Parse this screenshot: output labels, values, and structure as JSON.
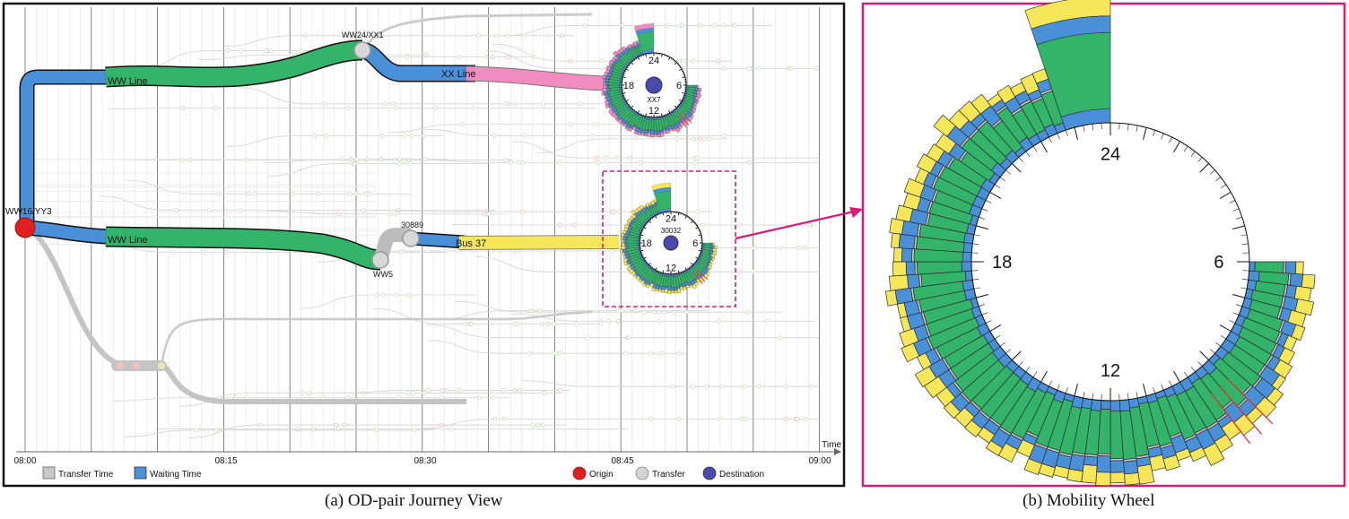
{
  "left_panel": {
    "caption": "(a) OD-pair Journey View",
    "time_axis": {
      "title": "Time",
      "ticks": [
        "08:00",
        "08:15",
        "08:30",
        "08:45",
        "09:00"
      ]
    },
    "routes": {
      "upper": {
        "seg1_label": "WW Line",
        "transfer_label": "WW24/XX1",
        "seg2_label": "XX Line",
        "destination_label": "XX7"
      },
      "lower": {
        "origin_label": "WW16/YY3",
        "seg1_label": "WW Line",
        "transfer1_label": "WW5",
        "transfer2_label": "30889",
        "seg2_label": "Bus 37",
        "destination_label": "30032"
      }
    },
    "clock_ticks": [
      "24",
      "6",
      "12",
      "18"
    ],
    "legend": [
      {
        "label": "Transfer Time",
        "color": "#c8c8c8",
        "shape": "square"
      },
      {
        "label": "Waiting Time",
        "color": "#4a90d9",
        "shape": "square"
      },
      {
        "label": "Origin",
        "color": "#e02020",
        "shape": "circle"
      },
      {
        "label": "Transfer",
        "color": "#d4d4d4",
        "shape": "circle"
      },
      {
        "label": "Destination",
        "color": "#4a4aa8",
        "shape": "circle"
      }
    ],
    "colors": {
      "ww_line": "#34b36a",
      "waiting": "#4a90d9",
      "xx_line": "#f08cbf",
      "bus37": "#f5e65a",
      "transfer_time": "#c8c8c8",
      "frame": "#111111",
      "highlight": "#d81b7a"
    }
  },
  "right_panel": {
    "caption": "(b) Mobility Wheel",
    "clock_ticks": [
      "24",
      "6",
      "12",
      "18"
    ]
  }
}
